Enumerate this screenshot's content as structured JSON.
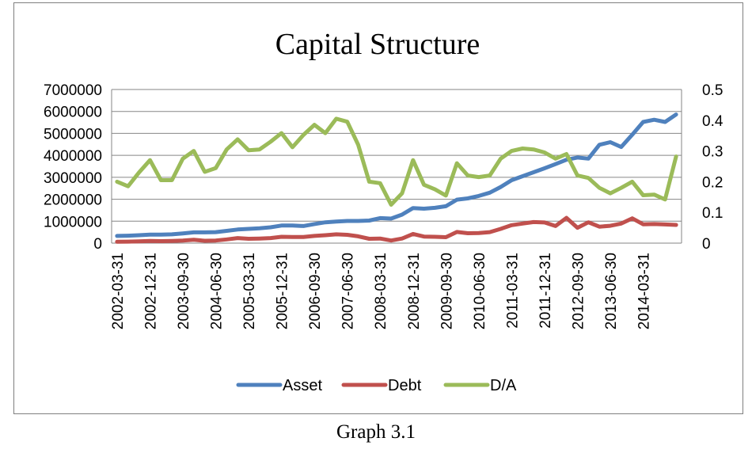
{
  "caption": "Graph 3.1",
  "chart_data": {
    "type": "line",
    "title": "Capital Structure",
    "xlabel": "",
    "ylabel": "",
    "ylim": [
      0,
      7000000
    ],
    "yticks": [
      "0",
      "1000000",
      "2000000",
      "3000000",
      "4000000",
      "5000000",
      "6000000",
      "7000000"
    ],
    "y2lim": [
      0,
      0.5
    ],
    "y2ticks": [
      "0",
      "0.1",
      "0.2",
      "0.3",
      "0.4",
      "0.5"
    ],
    "grid": true,
    "legend": "bottom",
    "x": [
      "2002-03-31",
      "2002-06-30",
      "2002-09-30",
      "2002-12-31",
      "2003-03-31",
      "2003-06-30",
      "2003-09-30",
      "2003-12-31",
      "2004-03-31",
      "2004-06-30",
      "2004-09-30",
      "2004-12-31",
      "2005-03-31",
      "2005-06-30",
      "2005-09-30",
      "2005-12-31",
      "2006-03-31",
      "2006-06-30",
      "2006-09-30",
      "2006-12-31",
      "2007-03-31",
      "2007-06-30",
      "2007-09-30",
      "2007-12-31",
      "2008-03-31",
      "2008-06-30",
      "2008-09-30",
      "2008-12-31",
      "2009-03-31",
      "2009-06-30",
      "2009-09-30",
      "2009-12-31",
      "2010-03-31",
      "2010-06-30",
      "2010-09-30",
      "2010-12-31",
      "2011-03-31",
      "2011-06-30",
      "2011-09-30",
      "2011-12-31",
      "2012-03-31",
      "2012-06-30",
      "2012-09-30",
      "2012-12-31",
      "2013-03-31",
      "2013-06-30",
      "2013-09-30",
      "2013-12-31",
      "2014-03-31",
      "2014-06-30",
      "2014-09-30",
      "2014-12-31"
    ],
    "x_tick_labels": [
      "2002-03-31",
      "2002-12-31",
      "2003-09-30",
      "2004-06-30",
      "2005-03-31",
      "2005-12-31",
      "2006-09-30",
      "2007-06-30",
      "2008-03-31",
      "2008-12-31",
      "2009-09-30",
      "2010-06-30",
      "2011-03-31",
      "2011-12-31",
      "2012-09-30",
      "2013-06-30",
      "2014-03-31"
    ],
    "series": [
      {
        "name": "Asset",
        "axis": "left",
        "color": "#4f81bd",
        "values": [
          330000,
          340000,
          360000,
          390000,
          390000,
          400000,
          440000,
          490000,
          490000,
          500000,
          560000,
          620000,
          650000,
          680000,
          720000,
          800000,
          800000,
          780000,
          870000,
          950000,
          980000,
          1010000,
          1010000,
          1030000,
          1140000,
          1120000,
          1300000,
          1600000,
          1570000,
          1610000,
          1680000,
          1980000,
          2040000,
          2150000,
          2300000,
          2560000,
          2870000,
          3050000,
          3230000,
          3410000,
          3600000,
          3800000,
          3900000,
          3850000,
          4480000,
          4600000,
          4380000,
          4940000,
          5520000,
          5620000,
          5520000,
          5860000
        ]
      },
      {
        "name": "Debt",
        "axis": "left",
        "color": "#c0504d",
        "values": [
          60000,
          70000,
          80000,
          100000,
          90000,
          100000,
          120000,
          150000,
          110000,
          120000,
          170000,
          230000,
          200000,
          210000,
          230000,
          290000,
          280000,
          280000,
          330000,
          360000,
          400000,
          380000,
          310000,
          200000,
          210000,
          120000,
          210000,
          420000,
          300000,
          290000,
          270000,
          510000,
          450000,
          460000,
          500000,
          650000,
          820000,
          890000,
          960000,
          940000,
          780000,
          1150000,
          700000,
          950000,
          750000,
          790000,
          890000,
          1130000,
          860000,
          870000,
          850000,
          830000
        ]
      },
      {
        "name": "D/A",
        "axis": "right",
        "color": "#9bbb59",
        "values": [
          0.2,
          0.185,
          0.23,
          0.27,
          0.205,
          0.205,
          0.275,
          0.3,
          0.232,
          0.244,
          0.305,
          0.338,
          0.302,
          0.305,
          0.33,
          0.358,
          0.312,
          0.352,
          0.385,
          0.358,
          0.405,
          0.395,
          0.32,
          0.2,
          0.195,
          0.125,
          0.162,
          0.27,
          0.19,
          0.175,
          0.155,
          0.26,
          0.22,
          0.215,
          0.22,
          0.275,
          0.3,
          0.308,
          0.305,
          0.295,
          0.275,
          0.29,
          0.22,
          0.212,
          0.18,
          0.162,
          0.18,
          0.2,
          0.156,
          0.158,
          0.142,
          0.282
        ]
      }
    ]
  }
}
